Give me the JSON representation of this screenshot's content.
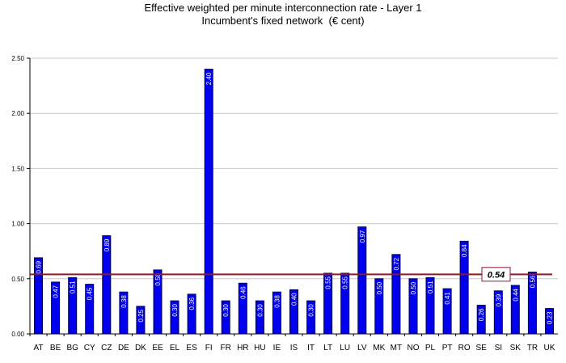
{
  "chart_data": {
    "type": "bar",
    "title": "Effective weighted per minute interconnection rate - Layer 1",
    "subtitle": "Incumbent's fixed network  (€ cent)",
    "categories": [
      "AT",
      "BE",
      "BG",
      "CY",
      "CZ",
      "DE",
      "DK",
      "EE",
      "EL",
      "ES",
      "FI",
      "FR",
      "HR",
      "HU",
      "IE",
      "IS",
      "IT",
      "LT",
      "LU",
      "LV",
      "MK",
      "MT",
      "NO",
      "PL",
      "PT",
      "RO",
      "SE",
      "SI",
      "SK",
      "TR",
      "UK"
    ],
    "values": [
      0.69,
      0.47,
      0.51,
      0.45,
      0.89,
      0.38,
      0.25,
      0.58,
      0.3,
      0.36,
      2.4,
      0.3,
      0.46,
      0.3,
      0.38,
      0.4,
      0.3,
      0.55,
      0.55,
      0.97,
      0.5,
      0.72,
      0.5,
      0.51,
      0.41,
      0.84,
      0.26,
      0.39,
      0.44,
      0.56,
      0.23
    ],
    "value_labels": [
      "0.69",
      "0.47",
      "0.51",
      "0.45",
      "0.89",
      "0.38",
      "0.25",
      "0.58",
      "0.30",
      "0.36",
      "2.40",
      "0.30",
      "0.46",
      "0.30",
      "0.38",
      "0.40",
      "0.30",
      "0.55",
      "0.55",
      "0.97",
      "0.50",
      "0.72",
      "0.50",
      "0.51",
      "0.41",
      "0.84",
      "0.26",
      "0.39",
      "0.44",
      "0.56",
      "0.23"
    ],
    "show_value_labels": [
      true,
      true,
      true,
      true,
      true,
      true,
      true,
      true,
      true,
      true,
      true,
      true,
      true,
      true,
      true,
      true,
      true,
      true,
      true,
      true,
      true,
      true,
      true,
      true,
      true,
      true,
      true,
      true,
      true,
      true,
      true
    ],
    "ylim": [
      0,
      2.5
    ],
    "yticks": [
      "0.00",
      "0.50",
      "1.00",
      "1.50",
      "2.00",
      "2.50"
    ],
    "ytick_values": [
      0,
      0.5,
      1.0,
      1.5,
      2.0,
      2.5
    ],
    "grid": true,
    "average": 0.54,
    "average_label": "0.54",
    "colors": {
      "bar_fill": "#0000ee",
      "bar_stroke": "#000050",
      "average_line": "#8b1a2b",
      "grid": "#c8c8c8",
      "value_label": "#ffffff"
    }
  }
}
